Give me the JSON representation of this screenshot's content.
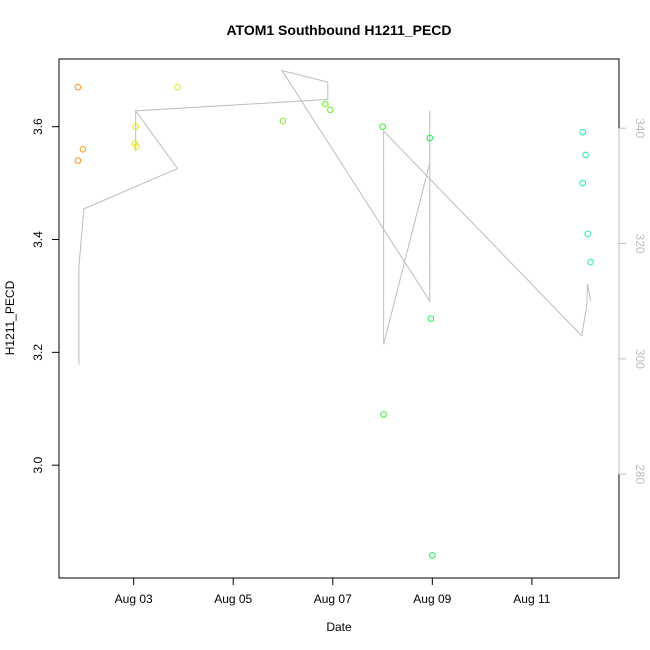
{
  "chart_data": {
    "type": "scatter",
    "title": "ATOM1 Southbound H1211_PECD",
    "xlabel": "Date",
    "ylabel": "H1211_PECD",
    "x_unit": "days in August",
    "xlim": [
      1.5,
      12.75
    ],
    "ylim": [
      2.8,
      3.72
    ],
    "y2lim": [
      262,
      352
    ],
    "x_ticks": [
      {
        "value": 3,
        "label": "Aug 03"
      },
      {
        "value": 5,
        "label": "Aug 05"
      },
      {
        "value": 7,
        "label": "Aug 07"
      },
      {
        "value": 9,
        "label": "Aug 09"
      },
      {
        "value": 11,
        "label": "Aug 11"
      }
    ],
    "y_ticks": [
      {
        "value": 3.0,
        "label": "3.0"
      },
      {
        "value": 3.2,
        "label": "3.2"
      },
      {
        "value": 3.4,
        "label": "3.4"
      },
      {
        "value": 3.6,
        "label": "3.6"
      }
    ],
    "y2_ticks": [
      {
        "value": 280,
        "label": "280"
      },
      {
        "value": 300,
        "label": "300"
      },
      {
        "value": 320,
        "label": "320"
      },
      {
        "value": 340,
        "label": "340"
      }
    ],
    "points": [
      {
        "x": 1.88,
        "y": 3.67,
        "color": "#ff8c1a"
      },
      {
        "x": 1.88,
        "y": 3.54,
        "color": "#ff8c1a"
      },
      {
        "x": 1.98,
        "y": 3.56,
        "color": "#ff9a1a"
      },
      {
        "x": 3.02,
        "y": 3.57,
        "color": "#e6e61a"
      },
      {
        "x": 3.06,
        "y": 3.565,
        "color": "#e6e61a"
      },
      {
        "x": 3.04,
        "y": 3.6,
        "color": "#e6e61a"
      },
      {
        "x": 3.88,
        "y": 3.67,
        "color": "#d9f01a"
      },
      {
        "x": 6.0,
        "y": 3.61,
        "color": "#80ee1a"
      },
      {
        "x": 6.85,
        "y": 3.64,
        "color": "#66ee1a"
      },
      {
        "x": 6.95,
        "y": 3.63,
        "color": "#66ee1a"
      },
      {
        "x": 8.0,
        "y": 3.6,
        "color": "#33ee33"
      },
      {
        "x": 8.02,
        "y": 3.09,
        "color": "#33ee33"
      },
      {
        "x": 8.95,
        "y": 3.58,
        "color": "#1aee4d"
      },
      {
        "x": 8.97,
        "y": 3.26,
        "color": "#1aee4d"
      },
      {
        "x": 9.0,
        "y": 2.84,
        "color": "#1aee4d"
      },
      {
        "x": 12.02,
        "y": 3.59,
        "color": "#1aeea0"
      },
      {
        "x": 12.08,
        "y": 3.55,
        "color": "#1aeea0"
      },
      {
        "x": 12.02,
        "y": 3.5,
        "color": "#1aeea0"
      },
      {
        "x": 12.12,
        "y": 3.41,
        "color": "#1aeeb0"
      },
      {
        "x": 12.18,
        "y": 3.36,
        "color": "#1aeeb0"
      }
    ],
    "secondary_line": {
      "axis": "right",
      "color": "#bdbdbd",
      "points": [
        [
          1.9,
          299
        ],
        [
          1.9,
          316
        ],
        [
          2.0,
          326
        ],
        [
          3.88,
          333
        ],
        [
          3.04,
          343
        ],
        [
          3.04,
          336
        ],
        [
          3.04,
          343
        ],
        [
          6.9,
          345
        ],
        [
          6.9,
          348
        ],
        [
          5.98,
          350
        ],
        [
          8.95,
          310
        ],
        [
          8.95,
          343
        ],
        [
          8.95,
          334
        ],
        [
          8.02,
          302.5
        ],
        [
          8.02,
          339.5
        ],
        [
          12.0,
          304
        ],
        [
          12.1,
          309
        ],
        [
          12.12,
          313
        ],
        [
          12.18,
          310
        ]
      ]
    }
  }
}
